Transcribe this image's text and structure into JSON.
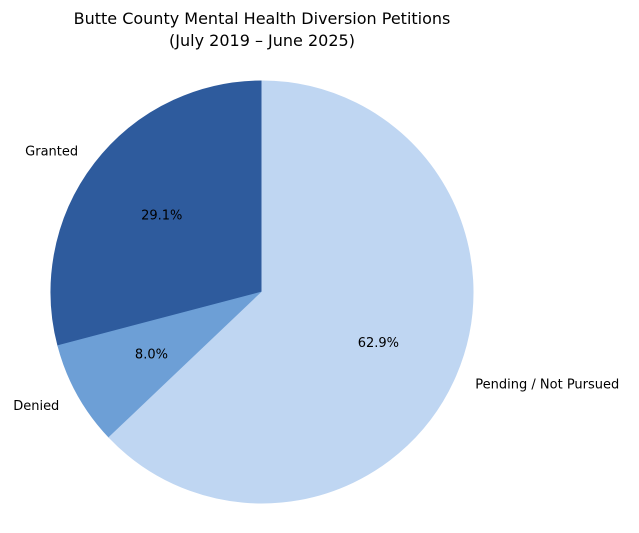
{
  "chart_data": {
    "type": "pie",
    "title": "Butte County Mental Health Diversion Petitions",
    "subtitle": "(July 2019 – June 2025)",
    "start_angle_deg": 90,
    "direction": "counterclockwise",
    "slices": [
      {
        "label": "Granted",
        "value": 29.1,
        "pct_label": "29.1%",
        "color": "#2e5b9d"
      },
      {
        "label": "Denied",
        "value": 8.0,
        "pct_label": "8.0%",
        "color": "#6d9fd6"
      },
      {
        "label": "Pending / Not Pursued",
        "value": 62.9,
        "pct_label": "62.9%",
        "color": "#bfd6f2"
      }
    ]
  }
}
